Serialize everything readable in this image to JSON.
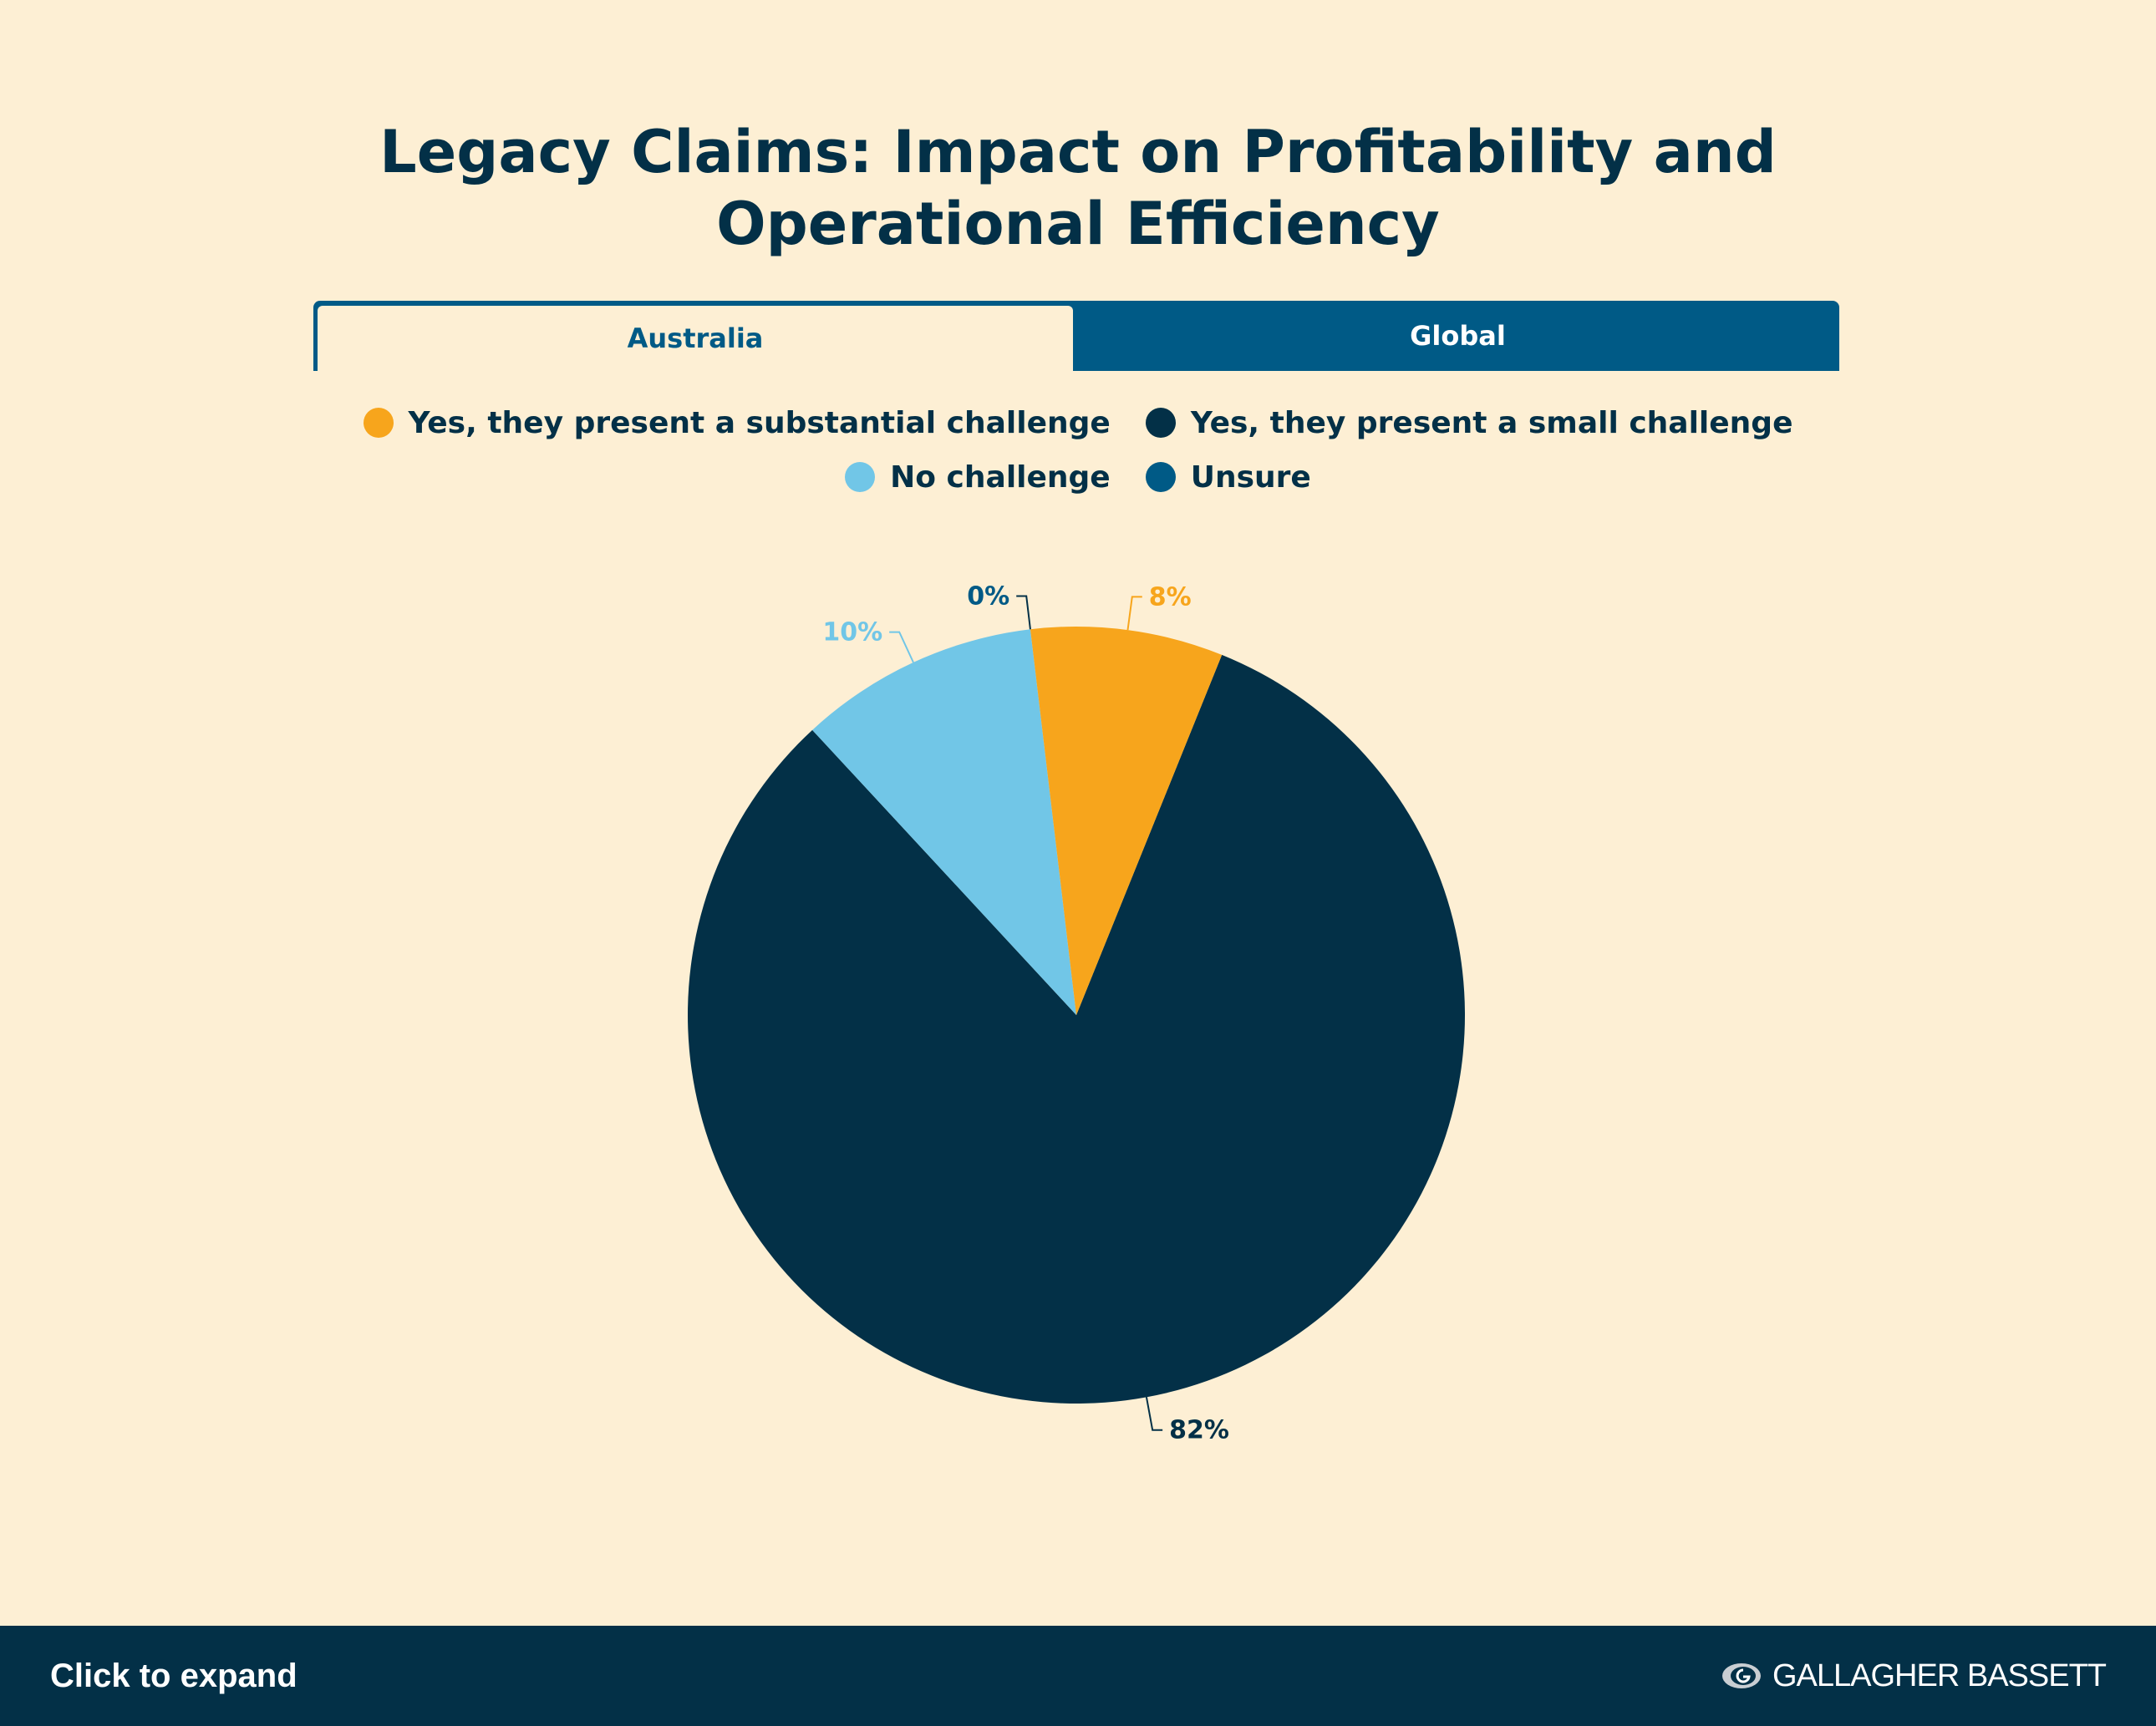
{
  "title": {
    "line1": "Legacy Claims: Impact on Profitability and",
    "line2": "Operational Efficiency"
  },
  "tabs": [
    {
      "label": "Australia",
      "active": true
    },
    {
      "label": "Global",
      "active": false
    }
  ],
  "colors": {
    "background": "#fdefd4",
    "navy": "#033047",
    "orange": "#f7a51c",
    "light_blue": "#71c6e7",
    "blue": "#005a86"
  },
  "chart_data": {
    "type": "pie",
    "title": "Legacy Claims: Impact on Profitability and Operational Efficiency",
    "legend_position": "top",
    "series": [
      {
        "name": "Yes, they present a substantial challenge",
        "value": 8,
        "label": "8%",
        "color": "#f7a51c"
      },
      {
        "name": "Yes, they present a small challenge",
        "value": 82,
        "label": "82%",
        "color": "#033047"
      },
      {
        "name": "No challenge",
        "value": 10,
        "label": "10%",
        "color": "#71c6e7"
      },
      {
        "name": "Unsure",
        "value": 0,
        "label": "0%",
        "color": "#005a86"
      }
    ]
  },
  "footer": {
    "expand_label": "Click to expand",
    "logo_text": "GALLAGHER BASSETT",
    "logo_icon": "gallagher-bassett-logo-icon"
  }
}
